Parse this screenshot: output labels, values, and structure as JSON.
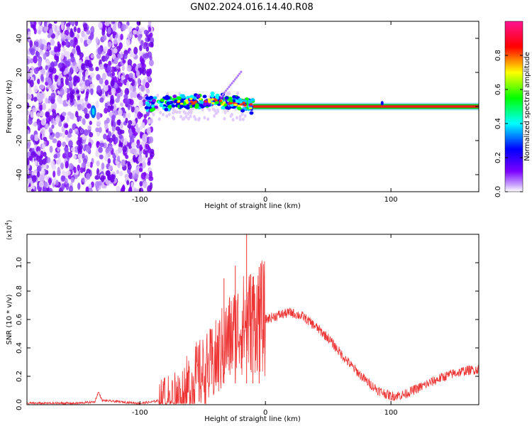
{
  "title": "GN02.2024.016.14.40.R08",
  "chart_data": [
    {
      "type": "heatmap",
      "title": "GN02.2024.016.14.40.R08",
      "xlabel": "Height of straight line (km)",
      "ylabel": "Frequency (Hz)",
      "xlim": [
        -190,
        170
      ],
      "ylim": [
        -50,
        50
      ],
      "xticks": [
        -100,
        0,
        100
      ],
      "yticks": [
        -40,
        -20,
        0,
        20,
        40
      ],
      "colorbar": {
        "label": "Normalized spectral amplitude",
        "range": [
          0,
          1
        ],
        "ticks": [
          "0.0",
          "0.2",
          "0.4",
          "0.6",
          "0.8"
        ],
        "colors": [
          "#ffffff",
          "#7b00ff",
          "#0000ff",
          "#00ffff",
          "#00ff00",
          "#ffff00",
          "#ff0000",
          "#ff1493"
        ]
      },
      "features": {
        "noise_region_x": [
          -190,
          -90
        ],
        "gap_x": -136,
        "spike_x": -136,
        "band_center_freq": 0,
        "band_start_x": -95,
        "band_drift_end_freq": 8,
        "steady_signal_start_x": -10
      }
    },
    {
      "type": "line",
      "xlabel": "Height of straight line (km)",
      "ylabel": "SNR (10 * v/v)",
      "exponent_label": "(x10",
      "exponent_power": "4",
      "exponent_close": ")",
      "xlim": [
        -190,
        170
      ],
      "ylim": [
        0,
        1.2
      ],
      "xticks": [
        -100,
        0,
        100
      ],
      "yticks": [
        0.0,
        0.2,
        0.4,
        0.6,
        0.8,
        1.0
      ],
      "ytick_labels": [
        "0.0",
        "0.2",
        "0.4",
        "0.6",
        "0.8",
        "1.0"
      ],
      "series": [
        {
          "name": "SNR",
          "color": "#ee3333",
          "x": [
            -190,
            -150,
            -136,
            -133,
            -130,
            -100,
            -90,
            -80,
            -70,
            -60,
            -55,
            -50,
            -45,
            -40,
            -35,
            -30,
            -25,
            -20,
            -15,
            -10,
            -5,
            0,
            10,
            20,
            30,
            40,
            50,
            60,
            70,
            80,
            90,
            100,
            110,
            120,
            130,
            140,
            150,
            160,
            170
          ],
          "y": [
            0.01,
            0.01,
            0.02,
            0.09,
            0.03,
            0.01,
            0.02,
            0.04,
            0.08,
            0.14,
            0.2,
            0.22,
            0.25,
            0.3,
            0.38,
            0.45,
            0.5,
            0.55,
            0.58,
            0.6,
            0.62,
            0.6,
            0.63,
            0.65,
            0.62,
            0.55,
            0.47,
            0.36,
            0.26,
            0.17,
            0.1,
            0.06,
            0.07,
            0.11,
            0.15,
            0.19,
            0.22,
            0.24,
            0.25
          ]
        }
      ],
      "annotations": {
        "max_peak": {
          "x": -15,
          "y": 1.2
        },
        "secondary_peaks": [
          {
            "x": -24,
            "y": 0.98
          },
          {
            "x": -5,
            "y": 0.97
          },
          {
            "x": -33,
            "y": 0.89
          },
          {
            "x": -10,
            "y": 0.9
          }
        ]
      }
    }
  ]
}
